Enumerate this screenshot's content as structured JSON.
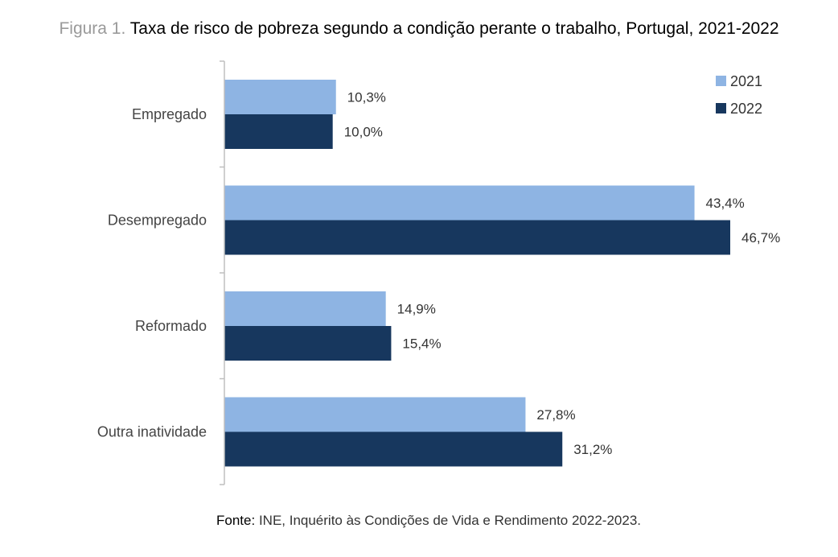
{
  "title": {
    "prefix": "Figura 1.",
    "text": "Taxa de risco de pobreza segundo a condição perante o trabalho, Portugal, 2021-2022"
  },
  "source": {
    "label": "Fonte:",
    "text": "INE, Inquérito às Condições de Vida e Rendimento 2022-2023."
  },
  "chart_data": {
    "type": "bar",
    "orientation": "horizontal",
    "categories": [
      "Empregado",
      "Desempregado",
      "Reformado",
      "Outra inatividade"
    ],
    "series": [
      {
        "name": "2021",
        "values": [
          10.3,
          43.4,
          14.9,
          27.8
        ],
        "labels": [
          "10,3%",
          "43,4%",
          "14,9%",
          "27,8%"
        ],
        "color": "#8eb4e3"
      },
      {
        "name": "2022",
        "values": [
          10.0,
          46.7,
          15.4,
          31.2
        ],
        "labels": [
          "10,0%",
          "46,7%",
          "15,4%",
          "31,2%"
        ],
        "color": "#17375e"
      }
    ],
    "xlim": [
      0,
      50
    ],
    "grid": false,
    "legend": "top-right",
    "unit": "%"
  }
}
